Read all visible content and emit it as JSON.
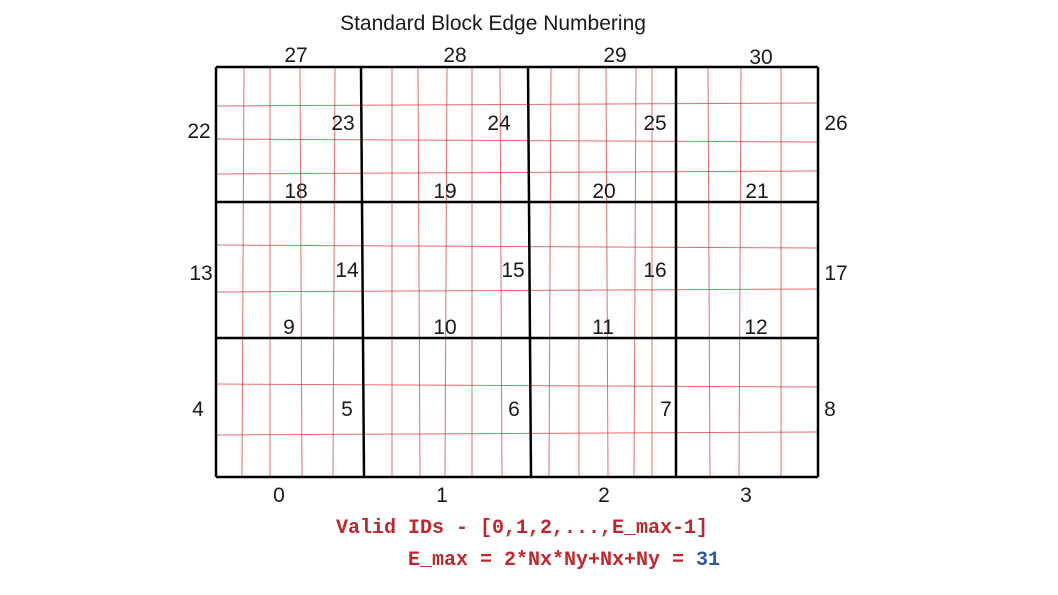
{
  "title": "Standard Block Edge Numbering",
  "grid": {
    "nx": 4,
    "ny": 3
  },
  "top_edges": [
    "27",
    "28",
    "29",
    "30"
  ],
  "left_edges": [
    "22",
    "13",
    "4"
  ],
  "right_edges": [
    "26",
    "17",
    "8"
  ],
  "interior_vertical": [
    "23",
    "24",
    "25",
    "14",
    "15",
    "16",
    "5",
    "6",
    "7"
  ],
  "interior_horizontal": [
    "18",
    "19",
    "20",
    "21",
    "9",
    "10",
    "11",
    "12"
  ],
  "bottom_block_ids": [
    "0",
    "1",
    "2",
    "3"
  ],
  "formula": {
    "valid_ids": "Valid IDs - [0,1,2,...,E_max-1]",
    "emax_expr": "E_max = 2*Nx*Ny+Nx+Ny = ",
    "emax_value": "31"
  },
  "colors": {
    "grid_major": "#000000",
    "grid_fine": "#d93030",
    "formula_red": "#c0272d",
    "formula_blue": "#2c5a9c",
    "text": "#1a1a1a"
  }
}
